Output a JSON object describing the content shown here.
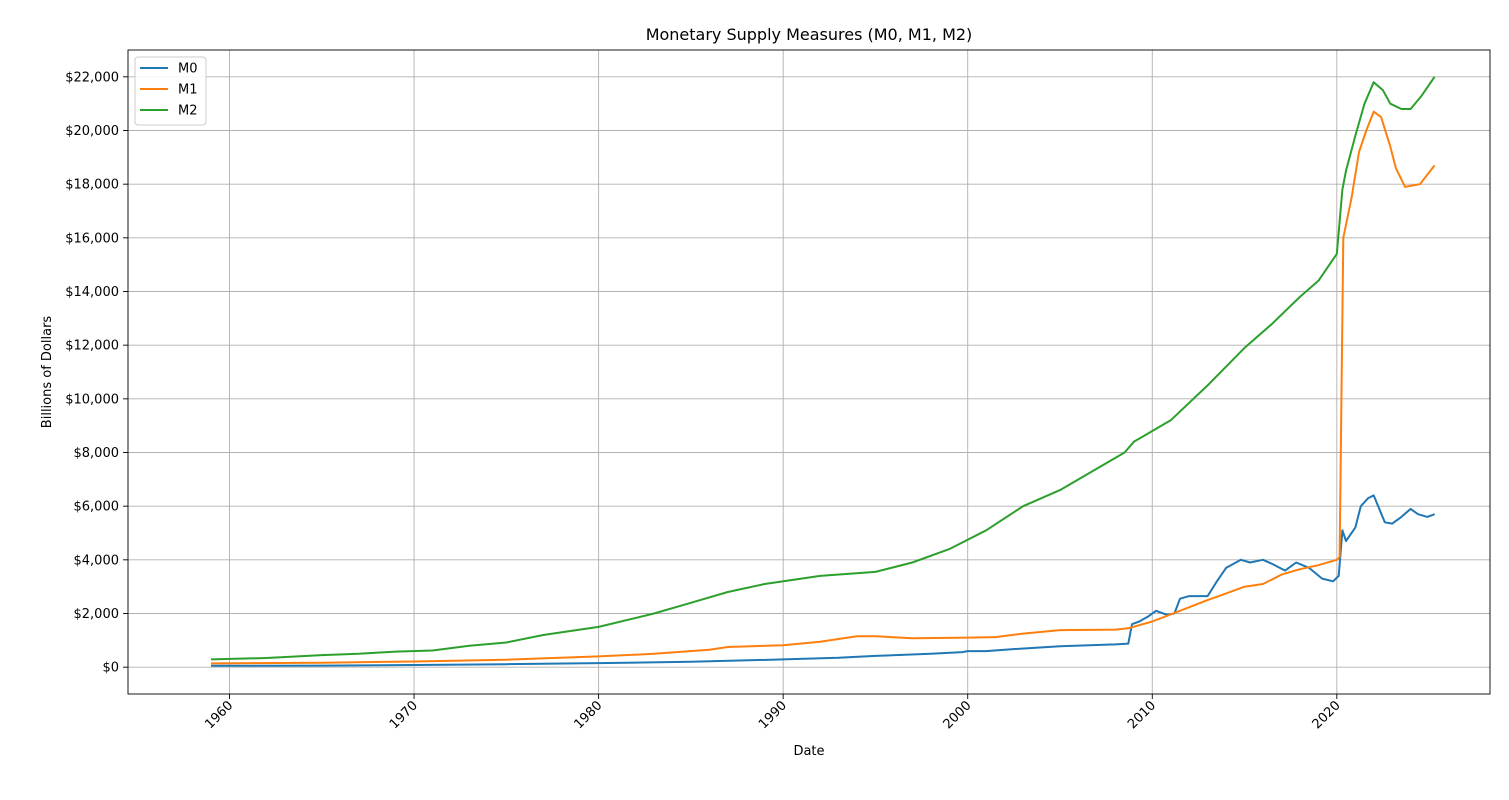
{
  "chart_data": {
    "type": "line",
    "title": "Monetary Supply Measures (M0, M1, M2)",
    "xlabel": "Date",
    "ylabel": "Billions of Dollars",
    "xlim": [
      1954.5,
      2028.3
    ],
    "ylim": [
      -1000,
      23000
    ],
    "xticks": [
      1960,
      1970,
      1980,
      1990,
      2000,
      2010,
      2020
    ],
    "xtick_labels": [
      "1960",
      "1970",
      "1980",
      "1990",
      "2000",
      "2010",
      "2020"
    ],
    "yticks": [
      0,
      2000,
      4000,
      6000,
      8000,
      10000,
      12000,
      14000,
      16000,
      18000,
      20000,
      22000
    ],
    "ytick_labels": [
      "$0",
      "$2,000",
      "$4,000",
      "$6,000",
      "$8,000",
      "$10,000",
      "$12,000",
      "$14,000",
      "$16,000",
      "$18,000",
      "$20,000",
      "$22,000"
    ],
    "grid": true,
    "legend_position": "top-left",
    "series": [
      {
        "name": "M0",
        "color": "#1f77b4",
        "points": [
          [
            1959.0,
            50
          ],
          [
            1965.0,
            60
          ],
          [
            1970.0,
            80
          ],
          [
            1975.0,
            110
          ],
          [
            1980.0,
            150
          ],
          [
            1985.0,
            200
          ],
          [
            1990.0,
            290
          ],
          [
            1993.0,
            350
          ],
          [
            1995.0,
            420
          ],
          [
            1998.0,
            500
          ],
          [
            1999.7,
            560
          ],
          [
            2000.0,
            600
          ],
          [
            2001.0,
            600
          ],
          [
            2002.0,
            650
          ],
          [
            2005.0,
            780
          ],
          [
            2008.0,
            850
          ],
          [
            2008.7,
            880
          ],
          [
            2008.9,
            1600
          ],
          [
            2009.3,
            1700
          ],
          [
            2009.8,
            1900
          ],
          [
            2010.2,
            2100
          ],
          [
            2010.8,
            1950
          ],
          [
            2011.2,
            2000
          ],
          [
            2011.5,
            2550
          ],
          [
            2012.0,
            2650
          ],
          [
            2013.0,
            2650
          ],
          [
            2013.5,
            3200
          ],
          [
            2014.0,
            3700
          ],
          [
            2014.8,
            4000
          ],
          [
            2015.3,
            3900
          ],
          [
            2016.0,
            4000
          ],
          [
            2016.5,
            3850
          ],
          [
            2017.2,
            3600
          ],
          [
            2017.8,
            3900
          ],
          [
            2018.5,
            3700
          ],
          [
            2019.2,
            3300
          ],
          [
            2019.8,
            3200
          ],
          [
            2020.1,
            3400
          ],
          [
            2020.3,
            5100
          ],
          [
            2020.5,
            4700
          ],
          [
            2021.0,
            5200
          ],
          [
            2021.3,
            6000
          ],
          [
            2021.7,
            6300
          ],
          [
            2022.0,
            6400
          ],
          [
            2022.3,
            5900
          ],
          [
            2022.6,
            5400
          ],
          [
            2023.0,
            5350
          ],
          [
            2023.5,
            5600
          ],
          [
            2024.0,
            5900
          ],
          [
            2024.4,
            5700
          ],
          [
            2024.9,
            5600
          ],
          [
            2025.3,
            5700
          ]
        ]
      },
      {
        "name": "M1",
        "color": "#ff7f0e",
        "points": [
          [
            1959.0,
            140
          ],
          [
            1965.0,
            165
          ],
          [
            1970.0,
            210
          ],
          [
            1975.0,
            280
          ],
          [
            1980.0,
            400
          ],
          [
            1983.0,
            500
          ],
          [
            1986.0,
            650
          ],
          [
            1987.0,
            750
          ],
          [
            1990.0,
            820
          ],
          [
            1992.0,
            950
          ],
          [
            1994.0,
            1150
          ],
          [
            1995.0,
            1150
          ],
          [
            1997.0,
            1080
          ],
          [
            2000.0,
            1100
          ],
          [
            2001.5,
            1120
          ],
          [
            2003.0,
            1250
          ],
          [
            2005.0,
            1380
          ],
          [
            2008.0,
            1400
          ],
          [
            2008.7,
            1450
          ],
          [
            2010.0,
            1700
          ],
          [
            2011.5,
            2100
          ],
          [
            2013.0,
            2500
          ],
          [
            2014.0,
            2750
          ],
          [
            2015.0,
            3000
          ],
          [
            2016.0,
            3100
          ],
          [
            2017.0,
            3450
          ],
          [
            2018.0,
            3650
          ],
          [
            2019.0,
            3800
          ],
          [
            2020.0,
            4000
          ],
          [
            2020.15,
            4100
          ],
          [
            2020.35,
            16000
          ],
          [
            2020.8,
            17500
          ],
          [
            2021.2,
            19200
          ],
          [
            2021.6,
            20000
          ],
          [
            2022.0,
            20700
          ],
          [
            2022.4,
            20500
          ],
          [
            2022.9,
            19400
          ],
          [
            2023.2,
            18600
          ],
          [
            2023.7,
            17900
          ],
          [
            2024.5,
            18000
          ],
          [
            2025.3,
            18700
          ]
        ]
      },
      {
        "name": "M2",
        "color": "#2ca02c",
        "points": [
          [
            1959.0,
            290
          ],
          [
            1962.0,
            340
          ],
          [
            1965.0,
            450
          ],
          [
            1967.0,
            500
          ],
          [
            1969.0,
            580
          ],
          [
            1971.0,
            620
          ],
          [
            1973.0,
            800
          ],
          [
            1975.0,
            920
          ],
          [
            1977.0,
            1200
          ],
          [
            1980.0,
            1500
          ],
          [
            1983.0,
            2000
          ],
          [
            1985.0,
            2400
          ],
          [
            1987.0,
            2800
          ],
          [
            1989.0,
            3100
          ],
          [
            1992.0,
            3400
          ],
          [
            1995.0,
            3550
          ],
          [
            1997.0,
            3900
          ],
          [
            1999.0,
            4400
          ],
          [
            2001.0,
            5100
          ],
          [
            2003.0,
            6000
          ],
          [
            2005.0,
            6600
          ],
          [
            2007.0,
            7400
          ],
          [
            2008.5,
            8000
          ],
          [
            2009.0,
            8400
          ],
          [
            2011.0,
            9200
          ],
          [
            2013.0,
            10500
          ],
          [
            2015.0,
            11900
          ],
          [
            2016.5,
            12800
          ],
          [
            2018.0,
            13800
          ],
          [
            2019.0,
            14400
          ],
          [
            2020.0,
            15400
          ],
          [
            2020.3,
            17800
          ],
          [
            2020.5,
            18500
          ],
          [
            2021.0,
            19800
          ],
          [
            2021.5,
            21000
          ],
          [
            2022.0,
            21800
          ],
          [
            2022.5,
            21500
          ],
          [
            2022.9,
            21000
          ],
          [
            2023.5,
            20800
          ],
          [
            2024.0,
            20800
          ],
          [
            2024.6,
            21300
          ],
          [
            2025.3,
            22000
          ]
        ]
      }
    ]
  }
}
